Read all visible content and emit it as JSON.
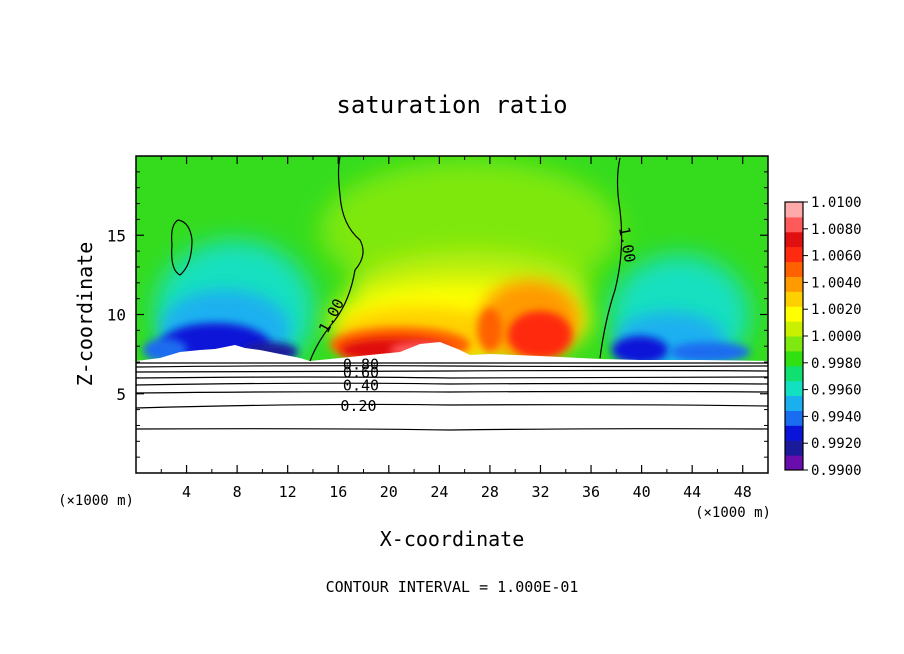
{
  "chart_data": {
    "type": "heatmap",
    "title": "saturation ratio",
    "xlabel": "X-coordinate",
    "ylabel": "Z-coordinate",
    "x_unit_label": "(×1000 m)",
    "y_unit_label": "(×1000 m)",
    "xlim": [
      0,
      50
    ],
    "ylim": [
      0,
      20
    ],
    "x_ticks": [
      4,
      8,
      12,
      16,
      20,
      24,
      28,
      32,
      36,
      40,
      44,
      48
    ],
    "y_ticks": [
      5,
      10,
      15
    ],
    "footer": "CONTOUR INTERVAL = 1.000E-01",
    "colorbar": {
      "min": 0.99,
      "max": 1.01,
      "labels": [
        "1.0100",
        "1.0080",
        "1.0060",
        "1.0040",
        "1.0020",
        "1.0000",
        "0.9980",
        "0.9960",
        "0.9940",
        "0.9920",
        "0.9900"
      ],
      "colors": [
        "#6a0dad",
        "#1a1a9a",
        "#0a14d8",
        "#1a6cf0",
        "#1ab0f0",
        "#12e0c0",
        "#10e070",
        "#30e010",
        "#7ee810",
        "#c8f000",
        "#ffff00",
        "#ffd000",
        "#ff9a00",
        "#ff6000",
        "#ff2a10",
        "#e01010",
        "#ff5a5a",
        "#ffaaaa"
      ]
    },
    "contour_labels": [
      {
        "text": "1.00",
        "x": 15.5,
        "z": 9.9,
        "rotate": -62
      },
      {
        "text": "1.00",
        "x": 38.8,
        "z": 14.4,
        "rotate": 80
      },
      {
        "text": "0.80",
        "x": 17.8,
        "z": 6.8,
        "rotate": 0
      },
      {
        "text": "0.60",
        "x": 17.8,
        "z": 6.3,
        "rotate": 0
      },
      {
        "text": "0.40",
        "x": 17.8,
        "z": 5.5,
        "rotate": 0
      },
      {
        "text": "0.20",
        "x": 17.6,
        "z": 4.2,
        "rotate": 0
      }
    ]
  }
}
